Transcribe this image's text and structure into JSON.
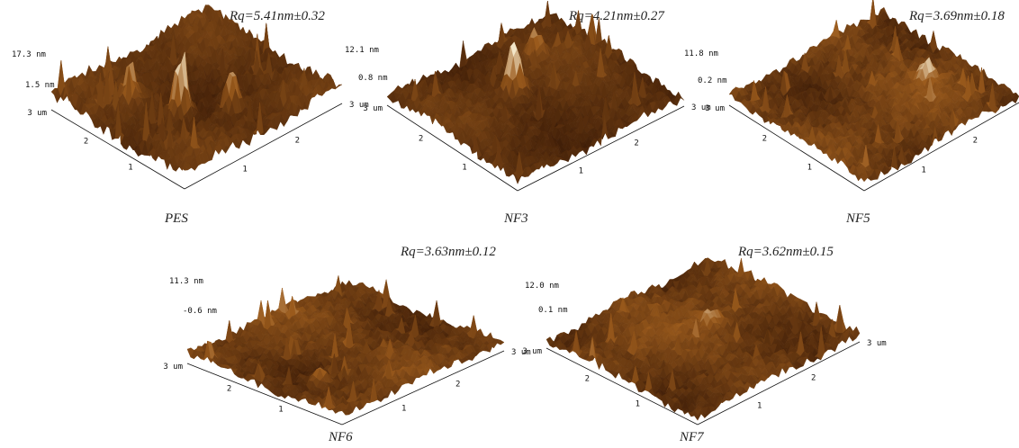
{
  "colors": {
    "dark": "#3a1a06",
    "mid": "#9a5a1c",
    "light": "#f3e6c8",
    "axis": "#111111"
  },
  "panels": [
    {
      "id": "pes",
      "name": "PES",
      "rq": "Rq=5.41nm±0.32",
      "z_max": "17.3 nm",
      "z_min": "1.5 nm",
      "xy_max": "3 um",
      "y_ticks": [
        "2",
        "1"
      ],
      "x_ticks": [
        "1",
        "2"
      ],
      "rq_value_nm": 5.41,
      "rq_error_nm": 0.32
    },
    {
      "id": "nf3",
      "name": "NF3",
      "rq": "Rq=4.21nm±0.27",
      "z_max": "12.1 nm",
      "z_min": "0.8 nm",
      "xy_max": "3 um",
      "y_ticks": [
        "2",
        "1"
      ],
      "x_ticks": [
        "1",
        "2"
      ],
      "rq_value_nm": 4.21,
      "rq_error_nm": 0.27
    },
    {
      "id": "nf5",
      "name": "NF5",
      "rq": "Rq=3.69nm±0.18",
      "z_max": "11.8 nm",
      "z_min": "0.2 nm",
      "xy_max": "3 um",
      "y_ticks": [
        "2",
        "1"
      ],
      "x_ticks": [
        "1",
        "2"
      ],
      "rq_value_nm": 3.69,
      "rq_error_nm": 0.18
    },
    {
      "id": "nf6",
      "name": "NF6",
      "rq": "Rq=3.63nm±0.12",
      "z_max": "11.3 nm",
      "z_min": "-0.6 nm",
      "xy_max": "3 um",
      "y_ticks": [
        "2",
        "1"
      ],
      "x_ticks": [
        "1",
        "2"
      ],
      "rq_value_nm": 3.63,
      "rq_error_nm": 0.12
    },
    {
      "id": "nf7",
      "name": "NF7",
      "rq": "Rq=3.62nm±0.15",
      "z_max": "12.0 nm",
      "z_min": "0.1 nm",
      "xy_max": "3 um",
      "y_ticks": [
        "2",
        "1"
      ],
      "x_ticks": [
        "1",
        "2"
      ],
      "rq_value_nm": 3.62,
      "rq_error_nm": 0.15
    }
  ]
}
